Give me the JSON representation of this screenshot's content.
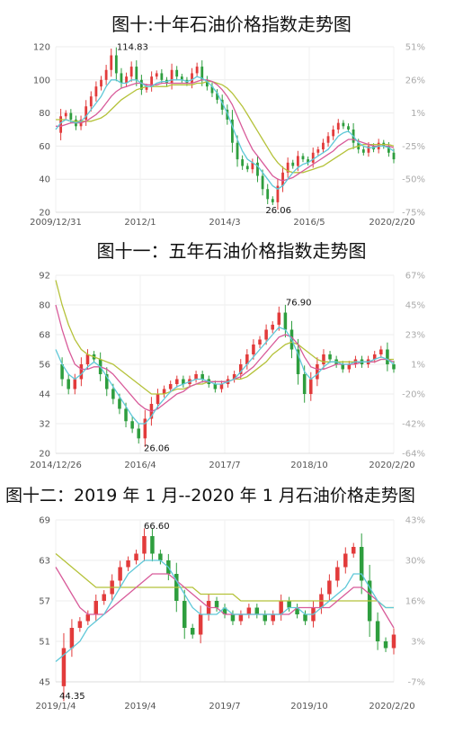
{
  "chart_data": [
    {
      "type": "line",
      "title": "图十:十年石油价格指数走势图",
      "x_labels": [
        "2009/12/31",
        "2012/1",
        "2014/3",
        "2016/5",
        "2020/2/20"
      ],
      "y_ticks": [
        120,
        100,
        80,
        60,
        40,
        20
      ],
      "y2_ticks": [
        "51%",
        "26%",
        "1%",
        "-25%",
        "-50%",
        "-75%"
      ],
      "ylim": [
        20,
        120
      ],
      "annotations": [
        {
          "text": "114.83",
          "x": "2011/4",
          "y": 114.83
        },
        {
          "text": "26.06",
          "x": "2016/2",
          "y": 26.06
        }
      ],
      "series": [
        {
          "color": "#e23b3b",
          "values": [
            68,
            78,
            80,
            76,
            72,
            76,
            84,
            90,
            96,
            100,
            106,
            114.83,
            104,
            98,
            102,
            108,
            100,
            94,
            96,
            102,
            104,
            100,
            98,
            106,
            102,
            100,
            98,
            104,
            108,
            100,
            96,
            92,
            88,
            82,
            76,
            62,
            52,
            48,
            46,
            50,
            42,
            34,
            28,
            26.06,
            36,
            44,
            50,
            48,
            54,
            52,
            50,
            56,
            58,
            62,
            66,
            70,
            74,
            72,
            70,
            62,
            58,
            56,
            60,
            58,
            62,
            60,
            56,
            52
          ]
        },
        {
          "color": "#5fc8d8",
          "values": [
            70,
            74,
            76,
            75,
            74,
            75,
            78,
            82,
            86,
            90,
            96,
            100,
            100,
            98,
            98,
            100,
            100,
            98,
            96,
            96,
            98,
            99,
            99,
            100,
            100,
            100,
            99,
            100,
            102,
            101,
            99,
            96,
            92,
            86,
            80,
            72,
            64,
            57,
            52,
            50,
            48,
            44,
            40,
            36,
            34,
            36,
            40,
            44,
            47,
            49,
            50,
            52,
            54,
            56,
            58,
            62,
            66,
            68,
            69,
            66,
            62,
            60,
            59,
            59,
            60,
            60,
            59,
            57
          ]
        },
        {
          "color": "#d85b9a",
          "values": [
            72,
            72,
            73,
            74,
            74,
            74,
            75,
            77,
            79,
            82,
            86,
            90,
            93,
            95,
            96,
            97,
            98,
            98,
            97,
            97,
            97,
            98,
            98,
            98,
            98,
            98,
            98,
            98,
            99,
            100,
            100,
            99,
            97,
            94,
            90,
            85,
            78,
            71,
            64,
            58,
            54,
            50,
            46,
            42,
            40,
            39,
            40,
            41,
            43,
            45,
            47,
            49,
            51,
            53,
            55,
            57,
            60,
            62,
            64,
            64,
            63,
            62,
            61,
            60,
            60,
            60,
            60,
            59
          ]
        },
        {
          "color": "#b5c23a",
          "values": [
            76,
            76,
            76,
            75,
            75,
            75,
            75,
            75,
            76,
            77,
            79,
            82,
            85,
            88,
            90,
            92,
            94,
            95,
            96,
            96,
            96,
            96,
            96,
            97,
            97,
            97,
            97,
            97,
            98,
            98,
            99,
            99,
            98,
            97,
            95,
            92,
            88,
            84,
            79,
            74,
            69,
            64,
            59,
            54,
            50,
            47,
            45,
            44,
            44,
            44,
            45,
            46,
            47,
            48,
            50,
            52,
            54,
            56,
            58,
            59,
            60,
            61,
            61,
            61,
            61,
            61,
            61,
            60
          ]
        }
      ]
    },
    {
      "type": "line",
      "title": "图十一：五年石油价格指数走势图",
      "x_labels": [
        "2014/12/26",
        "2016/4",
        "2017/7",
        "2018/10",
        "2020/2/20"
      ],
      "y_ticks": [
        92,
        80,
        68,
        56,
        44,
        32,
        20
      ],
      "y2_ticks": [
        "67%",
        "45%",
        "23%",
        "1%",
        "-20%",
        "-42%",
        "-64%"
      ],
      "ylim": [
        20,
        92
      ],
      "annotations": [
        {
          "text": "76.90",
          "x": "2018/10",
          "y": 76.9
        },
        {
          "text": "26.06",
          "x": "2016/2",
          "y": 26.06
        }
      ],
      "series": [
        {
          "color": "#e23b3b",
          "values": [
            56,
            50,
            46,
            50,
            56,
            60,
            58,
            52,
            46,
            42,
            38,
            33,
            30,
            26.06,
            34,
            40,
            44,
            46,
            48,
            50,
            48,
            50,
            52,
            50,
            48,
            46,
            48,
            50,
            52,
            56,
            60,
            64,
            66,
            70,
            72,
            76.9,
            70,
            62,
            52,
            44,
            50,
            56,
            60,
            58,
            56,
            54,
            56,
            58,
            56,
            58,
            60,
            62,
            56,
            54
          ]
        },
        {
          "color": "#5fc8d8",
          "values": [
            62,
            56,
            52,
            50,
            52,
            55,
            57,
            55,
            51,
            47,
            43,
            39,
            35,
            32,
            32,
            35,
            39,
            42,
            45,
            47,
            48,
            49,
            50,
            50,
            49,
            48,
            48,
            49,
            50,
            53,
            56,
            59,
            62,
            65,
            68,
            71,
            70,
            66,
            60,
            53,
            50,
            52,
            55,
            57,
            57,
            56,
            56,
            57,
            57,
            57,
            58,
            59,
            58,
            56
          ]
        },
        {
          "color": "#d85b9a",
          "values": [
            80,
            70,
            62,
            56,
            54,
            54,
            55,
            55,
            54,
            52,
            49,
            46,
            43,
            40,
            38,
            37,
            38,
            40,
            42,
            44,
            45,
            47,
            48,
            49,
            49,
            49,
            49,
            49,
            50,
            51,
            53,
            55,
            58,
            61,
            64,
            67,
            68,
            67,
            64,
            59,
            55,
            54,
            54,
            55,
            56,
            56,
            56,
            56,
            57,
            57,
            57,
            58,
            58,
            57
          ]
        },
        {
          "color": "#b5c23a",
          "values": [
            90,
            80,
            72,
            66,
            62,
            60,
            59,
            58,
            57,
            56,
            54,
            52,
            50,
            48,
            46,
            44,
            44,
            44,
            45,
            46,
            46,
            47,
            48,
            48,
            49,
            49,
            49,
            49,
            50,
            50,
            51,
            53,
            55,
            57,
            60,
            62,
            64,
            65,
            64,
            62,
            60,
            58,
            57,
            57,
            57,
            57,
            57,
            57,
            57,
            57,
            57,
            58,
            58,
            58
          ]
        }
      ]
    },
    {
      "type": "line",
      "title": "图十二：2019 年 1 月--2020 年 1 月石油价格走势图",
      "x_labels": [
        "2019/1/4",
        "2019/4",
        "2019/7",
        "2019/10",
        "2020/2/20"
      ],
      "y_ticks": [
        69,
        63,
        57,
        51,
        45
      ],
      "y2_ticks": [
        "43%",
        "30%",
        "16%",
        "3%",
        "-7%"
      ],
      "ylim": [
        45,
        69
      ],
      "annotations": [
        {
          "text": "66.60",
          "x": "2019/4",
          "y": 66.6
        },
        {
          "text": "44.35",
          "x": "2019/1/4",
          "y": 44.35
        }
      ],
      "series": [
        {
          "color": "#e23b3b",
          "values": [
            44.35,
            50,
            53,
            54,
            55,
            57,
            58,
            60,
            62,
            63,
            64,
            66.6,
            64,
            63,
            61,
            57,
            53,
            52,
            55,
            57,
            56,
            55,
            54,
            55,
            56,
            55,
            54,
            55,
            57,
            56,
            55,
            54,
            56,
            58,
            60,
            62,
            64,
            65,
            60,
            54,
            51,
            50,
            52
          ]
        },
        {
          "color": "#5fc8d8",
          "values": [
            48,
            49,
            50,
            51,
            53,
            54,
            55,
            57,
            59,
            61,
            62,
            63,
            63,
            63,
            62,
            60,
            58,
            56,
            55,
            55,
            55,
            56,
            55,
            55,
            55,
            55,
            55,
            55,
            55,
            56,
            56,
            55,
            55,
            56,
            57,
            58,
            59,
            61,
            61,
            59,
            57,
            56,
            56
          ]
        },
        {
          "color": "#d85b9a",
          "values": [
            62,
            60,
            58,
            56,
            55,
            55,
            55,
            56,
            57,
            58,
            59,
            60,
            61,
            61,
            61,
            60,
            59,
            58,
            57,
            56,
            56,
            55,
            55,
            55,
            55,
            55,
            55,
            55,
            55,
            55,
            56,
            56,
            56,
            56,
            56,
            57,
            58,
            59,
            59,
            58,
            57,
            55,
            53
          ]
        },
        {
          "color": "#b5c23a",
          "values": [
            64,
            63,
            62,
            61,
            60,
            59,
            59,
            59,
            59,
            59,
            59,
            59,
            59,
            59,
            59,
            59,
            59,
            59,
            58,
            58,
            58,
            58,
            58,
            57,
            57,
            57,
            57,
            57,
            57,
            57,
            57,
            57,
            57,
            57,
            57,
            57,
            57,
            57,
            57,
            57,
            57,
            56,
            56
          ]
        }
      ]
    }
  ]
}
